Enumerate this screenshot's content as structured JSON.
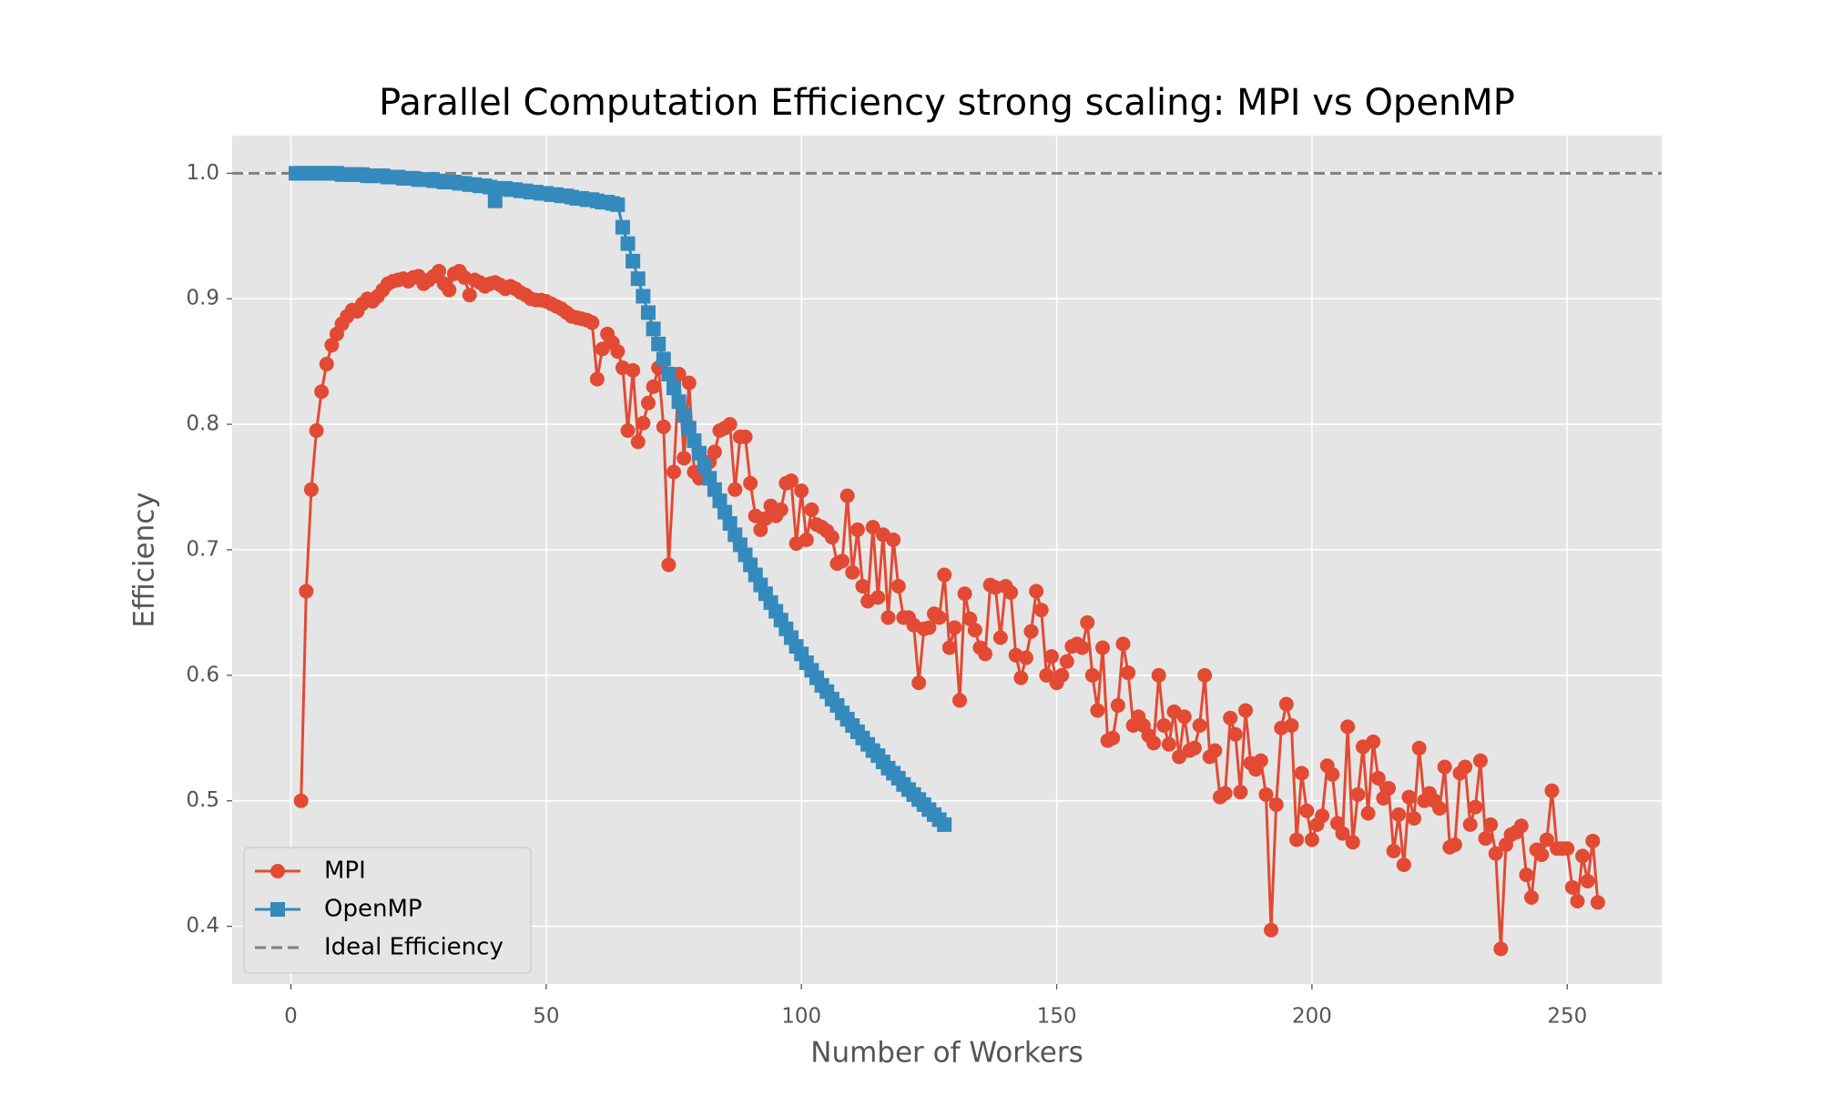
{
  "chart_data": {
    "type": "line",
    "title": "Parallel Computation Efficiency strong scaling: MPI vs OpenMP",
    "xlabel": "Number of Workers",
    "ylabel": "Efficiency",
    "xlim": [
      -11.5,
      268.5
    ],
    "ylim": [
      0.354,
      1.03
    ],
    "xticks": [
      0,
      50,
      100,
      150,
      200,
      250
    ],
    "yticks": [
      0.4,
      0.5,
      0.6,
      0.7,
      0.8,
      0.9,
      {
        "value": 1.0,
        "label": "1.0"
      }
    ],
    "grid": true,
    "legend": "lower left",
    "reference_line": {
      "name": "Ideal Efficiency",
      "value": 1.0,
      "color": "#808080"
    },
    "series": [
      {
        "name": "MPI",
        "color": "#E24A33",
        "marker": "circle",
        "x": [
          2,
          3,
          4,
          5,
          6,
          7,
          8,
          9,
          10,
          11,
          12,
          13,
          14,
          15,
          16,
          17,
          18,
          19,
          20,
          21,
          22,
          23,
          24,
          25,
          26,
          27,
          28,
          29,
          30,
          31,
          32,
          33,
          34,
          35,
          36,
          37,
          38,
          39,
          40,
          41,
          42,
          43,
          44,
          45,
          46,
          47,
          48,
          49,
          50,
          51,
          52,
          53,
          54,
          55,
          56,
          57,
          58,
          59,
          60,
          61,
          62,
          63,
          64,
          65,
          66,
          67,
          68,
          69,
          70,
          71,
          72,
          73,
          74,
          75,
          76,
          77,
          78,
          79,
          80,
          81,
          82,
          83,
          84,
          85,
          86,
          87,
          88,
          89,
          90,
          91,
          92,
          93,
          94,
          95,
          96,
          97,
          98,
          99,
          100,
          101,
          102,
          103,
          104,
          105,
          106,
          107,
          108,
          109,
          110,
          111,
          112,
          113,
          114,
          115,
          116,
          117,
          118,
          119,
          120,
          121,
          122,
          123,
          124,
          125,
          126,
          127,
          128,
          129,
          130,
          131,
          132,
          133,
          134,
          135,
          136,
          137,
          138,
          139,
          140,
          141,
          142,
          143,
          144,
          145,
          146,
          147,
          148,
          149,
          150,
          151,
          152,
          153,
          154,
          155,
          156,
          157,
          158,
          159,
          160,
          161,
          162,
          163,
          164,
          165,
          166,
          167,
          168,
          169,
          170,
          171,
          172,
          173,
          174,
          175,
          176,
          177,
          178,
          179,
          180,
          181,
          182,
          183,
          184,
          185,
          186,
          187,
          188,
          189,
          190,
          191,
          192,
          193,
          194,
          195,
          196,
          197,
          198,
          199,
          200,
          201,
          202,
          203,
          204,
          205,
          206,
          207,
          208,
          209,
          210,
          211,
          212,
          213,
          214,
          215,
          216,
          217,
          218,
          219,
          220,
          221,
          222,
          223,
          224,
          225,
          226,
          227,
          228,
          229,
          230,
          231,
          232,
          233,
          234,
          235,
          236,
          237,
          238,
          239,
          240,
          241,
          242,
          243,
          244,
          245,
          246,
          247,
          248,
          249,
          250,
          251,
          252,
          253,
          254,
          255,
          256
        ],
        "values": [
          0.5,
          0.667,
          0.748,
          0.795,
          0.826,
          0.848,
          0.863,
          0.872,
          0.88,
          0.886,
          0.891,
          0.89,
          0.896,
          0.9,
          0.898,
          0.902,
          0.907,
          0.912,
          0.914,
          0.915,
          0.916,
          0.914,
          0.917,
          0.918,
          0.912,
          0.915,
          0.918,
          0.922,
          0.912,
          0.907,
          0.92,
          0.922,
          0.917,
          0.903,
          0.915,
          0.913,
          0.91,
          0.912,
          0.913,
          0.911,
          0.908,
          0.91,
          0.908,
          0.905,
          0.903,
          0.9,
          0.899,
          0.899,
          0.898,
          0.896,
          0.894,
          0.892,
          0.889,
          0.886,
          0.885,
          0.884,
          0.883,
          0.881,
          0.836,
          0.86,
          0.872,
          0.865,
          0.858,
          0.845,
          0.795,
          0.843,
          0.786,
          0.801,
          0.817,
          0.83,
          0.845,
          0.798,
          0.688,
          0.762,
          0.84,
          0.773,
          0.833,
          0.762,
          0.757,
          0.76,
          0.77,
          0.778,
          0.795,
          0.797,
          0.8,
          0.748,
          0.79,
          0.79,
          0.753,
          0.727,
          0.716,
          0.725,
          0.735,
          0.727,
          0.732,
          0.753,
          0.755,
          0.705,
          0.747,
          0.708,
          0.732,
          0.72,
          0.718,
          0.715,
          0.71,
          0.689,
          0.691,
          0.743,
          0.682,
          0.716,
          0.671,
          0.659,
          0.718,
          0.662,
          0.712,
          0.646,
          0.708,
          0.671,
          0.646,
          0.646,
          0.64,
          0.594,
          0.637,
          0.638,
          0.649,
          0.646,
          0.68,
          0.622,
          0.638,
          0.58,
          0.665,
          0.645,
          0.636,
          0.622,
          0.617,
          0.672,
          0.67,
          0.63,
          0.671,
          0.666,
          0.616,
          0.598,
          0.614,
          0.635,
          0.667,
          0.652,
          0.6,
          0.615,
          0.594,
          0.6,
          0.611,
          0.623,
          0.625,
          0.622,
          0.642,
          0.6,
          0.572,
          0.622,
          0.548,
          0.55,
          0.576,
          0.625,
          0.602,
          0.56,
          0.567,
          0.56,
          0.552,
          0.546,
          0.6,
          0.56,
          0.545,
          0.571,
          0.535,
          0.567,
          0.54,
          0.542,
          0.56,
          0.6,
          0.535,
          0.54,
          0.503,
          0.506,
          0.566,
          0.553,
          0.507,
          0.572,
          0.53,
          0.525,
          0.532,
          0.505,
          0.397,
          0.497,
          0.558,
          0.577,
          0.56,
          0.469,
          0.522,
          0.492,
          0.469,
          0.481,
          0.488,
          0.528,
          0.521,
          0.482,
          0.474,
          0.559,
          0.467,
          0.505,
          0.543,
          0.49,
          0.547,
          0.518,
          0.502,
          0.51,
          0.46,
          0.489,
          0.449,
          0.503,
          0.486,
          0.542,
          0.5,
          0.506,
          0.5,
          0.494,
          0.527,
          0.463,
          0.465,
          0.522,
          0.527,
          0.481,
          0.495,
          0.532,
          0.47,
          0.481,
          0.458,
          0.382,
          0.465,
          0.473,
          0.475,
          0.48,
          0.441,
          0.423,
          0.461,
          0.457,
          0.469,
          0.508,
          0.462,
          0.462,
          0.462,
          0.431,
          0.42,
          0.456,
          0.436,
          0.468,
          0.419
        ]
      },
      {
        "name": "OpenMP",
        "color": "#348ABD",
        "marker": "square",
        "x": [
          1,
          2,
          3,
          4,
          5,
          6,
          7,
          8,
          9,
          10,
          11,
          12,
          13,
          14,
          15,
          16,
          17,
          18,
          19,
          20,
          21,
          22,
          23,
          24,
          25,
          26,
          27,
          28,
          29,
          30,
          31,
          32,
          33,
          34,
          35,
          36,
          37,
          38,
          39,
          40,
          41,
          42,
          43,
          44,
          45,
          46,
          47,
          48,
          49,
          50,
          51,
          52,
          53,
          54,
          55,
          56,
          57,
          58,
          59,
          60,
          61,
          62,
          63,
          64,
          65,
          66,
          67,
          68,
          69,
          70,
          71,
          72,
          73,
          74,
          75,
          76,
          77,
          78,
          79,
          80,
          81,
          82,
          83,
          84,
          85,
          86,
          87,
          88,
          89,
          90,
          91,
          92,
          93,
          94,
          95,
          96,
          97,
          98,
          99,
          100,
          101,
          102,
          103,
          104,
          105,
          106,
          107,
          108,
          109,
          110,
          111,
          112,
          113,
          114,
          115,
          116,
          117,
          118,
          119,
          120,
          121,
          122,
          123,
          124,
          125,
          126,
          127,
          128
        ],
        "values": [
          1.0,
          1.0,
          1.0,
          1.0,
          1.0,
          1.0,
          1.0,
          1.0,
          1.0,
          0.999,
          0.999,
          0.999,
          0.999,
          0.999,
          0.998,
          0.998,
          0.998,
          0.998,
          0.997,
          0.997,
          0.997,
          0.996,
          0.996,
          0.996,
          0.995,
          0.995,
          0.995,
          0.994,
          0.994,
          0.993,
          0.993,
          0.993,
          0.992,
          0.992,
          0.991,
          0.991,
          0.99,
          0.99,
          0.989,
          0.978,
          0.988,
          0.988,
          0.987,
          0.987,
          0.986,
          0.986,
          0.985,
          0.985,
          0.984,
          0.984,
          0.983,
          0.983,
          0.982,
          0.982,
          0.981,
          0.98,
          0.98,
          0.979,
          0.979,
          0.978,
          0.977,
          0.977,
          0.976,
          0.975,
          0.957,
          0.944,
          0.93,
          0.916,
          0.902,
          0.889,
          0.876,
          0.864,
          0.852,
          0.84,
          0.829,
          0.818,
          0.807,
          0.797,
          0.787,
          0.777,
          0.767,
          0.757,
          0.748,
          0.739,
          0.73,
          0.721,
          0.712,
          0.704,
          0.696,
          0.688,
          0.68,
          0.672,
          0.665,
          0.658,
          0.651,
          0.644,
          0.637,
          0.63,
          0.623,
          0.617,
          0.61,
          0.604,
          0.598,
          0.592,
          0.587,
          0.581,
          0.576,
          0.57,
          0.565,
          0.56,
          0.555,
          0.55,
          0.545,
          0.54,
          0.536,
          0.531,
          0.526,
          0.522,
          0.518,
          0.513,
          0.509,
          0.505,
          0.501,
          0.497,
          0.493,
          0.489,
          0.485,
          0.481
        ]
      }
    ]
  }
}
